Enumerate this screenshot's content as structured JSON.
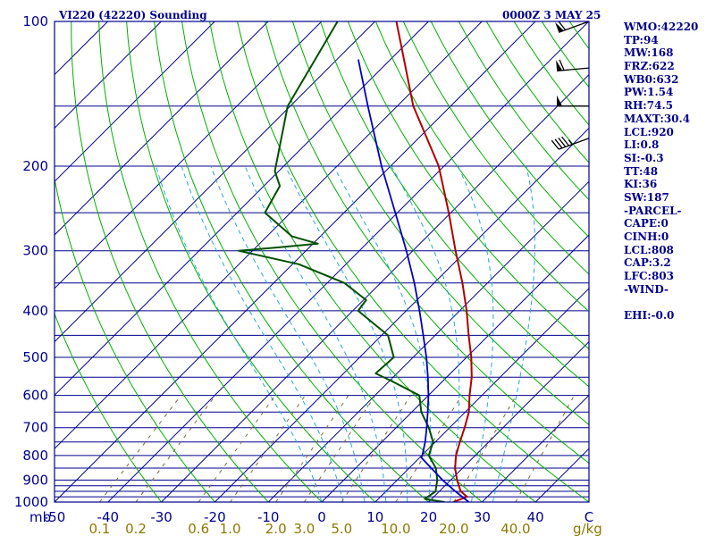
{
  "header": {
    "left": "VI220 (42220) Sounding",
    "right": "0000Z  3 MAY 25"
  },
  "indices": [
    "WMO:42220",
    "TP:94",
    "MW:168",
    "FRZ:622",
    "WB0:632",
    "PW:1.54",
    "RH:74.5",
    "MAXT:30.4",
    "LCL:920",
    "LI:0.8",
    "SI:-0.3",
    "TT:48",
    "KI:36",
    "SW:187",
    "-PARCEL-",
    "CAPE:0",
    "CINH:0",
    "LCL:808",
    "CAP:3.2",
    "LFC:803",
    "-WIND-",
    "",
    "EHI:-0.0"
  ],
  "colors": {
    "frame": "#00008b",
    "isobar": "#00008b",
    "isotherm": "#00008b",
    "dry_adiabat": "#00b000",
    "moist_adiabat": "#2aa6d6",
    "mixing_ratio": "#7a6a3a",
    "temperature": "#b00000",
    "dewpoint": "#005000",
    "parcel": "#0000c0",
    "barbs": "#000000"
  },
  "chart_data": {
    "type": "line",
    "skew_t": true,
    "title": "VI220 (42220) Sounding",
    "pressure_unit": "mb",
    "mixing_ratio_unit": "g/kg",
    "pressure_levels": [
      100,
      200,
      300,
      400,
      500,
      600,
      700,
      800,
      900,
      1000
    ],
    "pressure_gridlines": [
      100,
      150,
      200,
      250,
      300,
      350,
      400,
      450,
      500,
      550,
      600,
      650,
      700,
      750,
      800,
      850,
      900,
      925,
      950,
      975,
      1000
    ],
    "pressure_tick_labels": [
      "100",
      "200",
      "300",
      "400",
      "500",
      "600",
      "700",
      "800",
      "900",
      "1000"
    ],
    "temperature_ticks": [
      -50,
      -40,
      -30,
      -20,
      -10,
      0,
      10,
      20,
      30,
      40,
      50
    ],
    "temperature_tick_labels": [
      "-50",
      "-40",
      "-30",
      "-20",
      "-10",
      "0",
      "10",
      "20",
      "30",
      "40",
      "C"
    ],
    "mixing_ratio_ticks": [
      0.1,
      0.2,
      0.6,
      1.0,
      2.0,
      3.0,
      5.0,
      10.0,
      20.0,
      40.0
    ],
    "mixing_ratio_tick_labels": [
      "0.1",
      "0.2",
      "0.6",
      "1.0",
      "2.0",
      "3.0",
      "5.0",
      "10.0",
      "20.0",
      "40.0"
    ],
    "ylim": [
      1000,
      100
    ],
    "xlim_at_1000mb": [
      -50,
      50
    ],
    "series": [
      {
        "key": "temperature",
        "points": [
          [
            1000,
            24.6
          ],
          [
            975,
            26.2
          ],
          [
            950,
            24.0
          ],
          [
            925,
            22.6
          ],
          [
            900,
            21.2
          ],
          [
            850,
            18.6
          ],
          [
            800,
            16.4
          ],
          [
            750,
            14.6
          ],
          [
            700,
            12.8
          ],
          [
            650,
            10.7
          ],
          [
            600,
            7.7
          ],
          [
            550,
            4.7
          ],
          [
            500,
            0.9
          ],
          [
            450,
            -3.7
          ],
          [
            400,
            -8.7
          ],
          [
            350,
            -14.7
          ],
          [
            300,
            -22.0
          ],
          [
            250,
            -30.4
          ],
          [
            200,
            -41.0
          ],
          [
            150,
            -57.0
          ],
          [
            100,
            -76.0
          ]
        ]
      },
      {
        "key": "dewpoint",
        "points": [
          [
            1000,
            23.0
          ],
          [
            985,
            18.7
          ],
          [
            950,
            19.3
          ],
          [
            925,
            18.4
          ],
          [
            900,
            17.5
          ],
          [
            850,
            15.0
          ],
          [
            800,
            11.3
          ],
          [
            750,
            9.6
          ],
          [
            700,
            6.1
          ],
          [
            650,
            1.8
          ],
          [
            600,
            -1.7
          ],
          [
            560,
            -9.6
          ],
          [
            540,
            -14.0
          ],
          [
            500,
            -13.6
          ],
          [
            450,
            -18.8
          ],
          [
            400,
            -29.0
          ],
          [
            380,
            -29.5
          ],
          [
            350,
            -36.8
          ],
          [
            320,
            -48.8
          ],
          [
            300,
            -62.6
          ],
          [
            295,
            -55.5
          ],
          [
            290,
            -49.1
          ],
          [
            280,
            -55.3
          ],
          [
            250,
            -64.8
          ],
          [
            220,
            -67.0
          ],
          [
            205,
            -70.7
          ],
          [
            150,
            -80.5
          ],
          [
            100,
            -87.0
          ]
        ]
      },
      {
        "key": "parcel",
        "points": [
          [
            1000,
            27.5
          ],
          [
            950,
            23.0
          ],
          [
            900,
            18.5
          ],
          [
            808,
            10.3
          ],
          [
            800,
            10.1
          ],
          [
            750,
            8.1
          ],
          [
            700,
            5.7
          ],
          [
            650,
            3.0
          ],
          [
            600,
            0.0
          ],
          [
            550,
            -3.5
          ],
          [
            500,
            -7.5
          ],
          [
            450,
            -12.2
          ],
          [
            400,
            -17.5
          ],
          [
            350,
            -23.7
          ],
          [
            300,
            -31.2
          ],
          [
            250,
            -40.4
          ],
          [
            200,
            -51.7
          ],
          [
            150,
            -65.5
          ],
          [
            120,
            -76.0
          ]
        ]
      }
    ],
    "wind_barbs": [
      {
        "pressure": 100,
        "direction_deg": 250,
        "speed_kt": 60
      },
      {
        "pressure": 125,
        "direction_deg": 265,
        "speed_kt": 60
      },
      {
        "pressure": 150,
        "direction_deg": 270,
        "speed_kt": 50
      },
      {
        "pressure": 175,
        "direction_deg": 250,
        "speed_kt": 45
      }
    ]
  }
}
